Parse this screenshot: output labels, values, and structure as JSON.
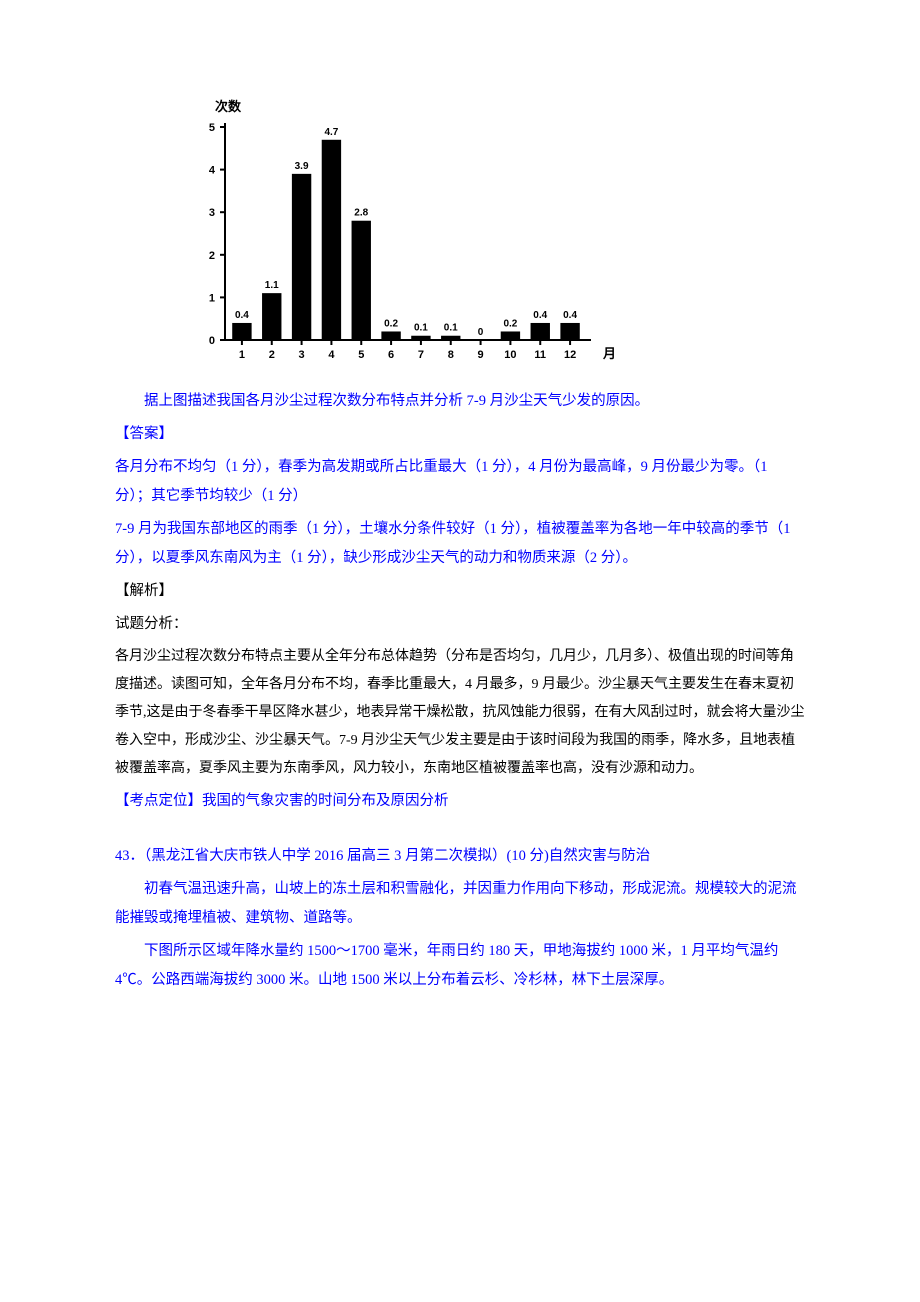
{
  "chart": {
    "type": "bar",
    "y_axis_label": "次数",
    "x_axis_label": "月",
    "categories": [
      "1",
      "2",
      "3",
      "4",
      "5",
      "6",
      "7",
      "8",
      "9",
      "10",
      "11",
      "12"
    ],
    "values": [
      0.4,
      1.1,
      3.9,
      4.7,
      2.8,
      0.2,
      0.1,
      0.1,
      0,
      0.2,
      0.4,
      0.4
    ],
    "value_labels": [
      "0.4",
      "1.1",
      "3.9",
      "4.7",
      "2.8",
      "0.2",
      "0.1",
      "0.1",
      "0",
      "0.2",
      "0.4",
      "0.4"
    ],
    "y_ticks": [
      0,
      1,
      2,
      3,
      4,
      5
    ],
    "y_tick_labels": [
      "0",
      "1",
      "2",
      "3",
      "4",
      "5"
    ],
    "bar_color": "#000000",
    "axis_color": "#000000",
    "label_color": "#000000",
    "background_color": "#ffffff",
    "label_fontsize": 11,
    "axis_fontsize": 13,
    "bar_width": 0.65
  },
  "question": {
    "prompt": "据上图描述我国各月沙尘过程次数分布特点并分析 7-9 月沙尘天气少发的原因。"
  },
  "answer": {
    "label": "【答案】",
    "line1": "各月分布不均匀（1 分），春季为高发期或所占比重最大（1 分），4 月份为最高峰，9 月份最少为零。（1 分）；其它季节均较少（1 分）",
    "line2": "7-9 月为我国东部地区的雨季（1 分），土壤水分条件较好（1 分），植被覆盖率为各地一年中较高的季节（1 分），以夏季风东南风为主（1 分），缺少形成沙尘天气的动力和物质来源（2 分）。"
  },
  "analysis": {
    "label": "【解析】",
    "sublabel": "试题分析：",
    "text": "各月沙尘过程次数分布特点主要从全年分布总体趋势（分布是否均匀，几月少，几月多）、极值出现的时间等角度描述。读图可知，全年各月分布不均，春季比重最大，4 月最多，9 月最少。沙尘暴天气主要发生在春末夏初季节,这是由于冬春季干旱区降水甚少，地表异常干燥松散，抗风蚀能力很弱，在有大风刮过时，就会将大量沙尘卷入空中，形成沙尘、沙尘暴天气。7-9 月沙尘天气少发主要是由于该时间段为我国的雨季，降水多，且地表植被覆盖率高，夏季风主要为东南季风，风力较小，东南地区植被覆盖率也高，没有沙源和动力。"
  },
  "topic": {
    "text": "【考点定位】我国的气象灾害的时间分布及原因分析"
  },
  "question2": {
    "number": "43．（黑龙江省大庆市铁人中学 2016 届高三 3 月第二次模拟）(10 分)自然灾害与防治",
    "para1": "初春气温迅速升高，山坡上的冻土层和积雪融化，并因重力作用向下移动，形成泥流。规模较大的泥流能摧毁或掩埋植被、建筑物、道路等。",
    "para2": "下图所示区域年降水量约 1500～1700 毫米，年雨日约 180 天，甲地海拔约 1000 米，1 月平均气温约 4℃。公路西端海拔约 3000 米。山地 1500 米以上分布着云杉、冷杉林，林下土层深厚。"
  }
}
